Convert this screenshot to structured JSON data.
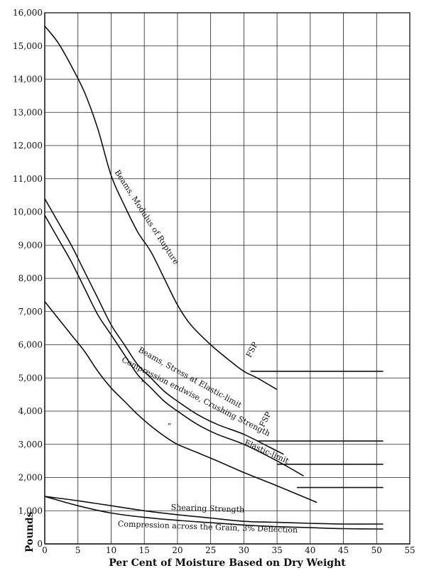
{
  "chart_data": {
    "type": "line",
    "xlabel": "Per Cent of Moisture Based on Dry Weight",
    "ylabel": "Pounds",
    "xlim": [
      0,
      55
    ],
    "ylim": [
      0,
      16000
    ],
    "grid": true,
    "x_ticks": [
      "0",
      "5",
      "10",
      "15",
      "20",
      "25",
      "30",
      "35",
      "40",
      "45",
      "50",
      "55"
    ],
    "y_ticks": [
      "0",
      "1,000",
      "2,000",
      "3,000",
      "4,000",
      "5,000",
      "6,000",
      "7,000",
      "8,000",
      "9,000",
      "10,000",
      "11,000",
      "12,000",
      "13,000",
      "14,000",
      "15,000",
      "16,000"
    ],
    "series": [
      {
        "name": "Beams, Modulus of Rupture",
        "points": [
          [
            0,
            15600
          ],
          [
            2,
            15100
          ],
          [
            4,
            14400
          ],
          [
            6,
            13600
          ],
          [
            8,
            12500
          ],
          [
            10,
            11100
          ],
          [
            12,
            10200
          ],
          [
            14,
            9400
          ],
          [
            16,
            8800
          ],
          [
            18,
            8000
          ],
          [
            20,
            7200
          ],
          [
            22,
            6600
          ],
          [
            25,
            6000
          ],
          [
            28,
            5500
          ],
          [
            30,
            5200
          ],
          [
            32,
            5000
          ],
          [
            35,
            4650
          ]
        ],
        "flat": {
          "y": 5200,
          "x": [
            31,
            51
          ]
        },
        "fsp": {
          "text": "FSP",
          "x": 31,
          "y": 5600
        }
      },
      {
        "name": "Beams, Stress at Elastic-limit",
        "points": [
          [
            0,
            10400
          ],
          [
            2,
            9700
          ],
          [
            4,
            9000
          ],
          [
            6,
            8200
          ],
          [
            8,
            7400
          ],
          [
            10,
            6600
          ],
          [
            12,
            6000
          ],
          [
            14,
            5400
          ],
          [
            16,
            5000
          ],
          [
            18,
            4600
          ],
          [
            20,
            4300
          ],
          [
            23,
            3900
          ],
          [
            26,
            3600
          ],
          [
            30,
            3300
          ],
          [
            34,
            2900
          ],
          [
            36,
            2700
          ]
        ],
        "flat": {
          "y": 3100,
          "x": [
            32,
            51
          ]
        },
        "fsp": {
          "text": "FSP",
          "x": 33,
          "y": 3500
        }
      },
      {
        "name": "Compression endwise, Crushing Strength",
        "points": [
          [
            0,
            9900
          ],
          [
            2,
            9200
          ],
          [
            4,
            8500
          ],
          [
            6,
            7700
          ],
          [
            8,
            6900
          ],
          [
            10,
            6300
          ],
          [
            12,
            5700
          ],
          [
            14,
            5100
          ],
          [
            16,
            4700
          ],
          [
            18,
            4300
          ],
          [
            20,
            4000
          ],
          [
            23,
            3600
          ],
          [
            26,
            3300
          ],
          [
            30,
            3000
          ],
          [
            35,
            2500
          ],
          [
            39,
            2050
          ]
        ],
        "flat": {
          "y": 2400,
          "x": [
            35,
            51
          ]
        }
      },
      {
        "name": "Compression endwise, Elastic-limit",
        "points": [
          [
            0,
            7300
          ],
          [
            2,
            6800
          ],
          [
            4,
            6300
          ],
          [
            6,
            5800
          ],
          [
            8,
            5200
          ],
          [
            10,
            4700
          ],
          [
            12,
            4300
          ],
          [
            14,
            3900
          ],
          [
            16,
            3550
          ],
          [
            18,
            3250
          ],
          [
            20,
            3000
          ],
          [
            23,
            2750
          ],
          [
            26,
            2500
          ],
          [
            30,
            2150
          ],
          [
            35,
            1750
          ],
          [
            41,
            1250
          ]
        ],
        "flat": {
          "y": 1700,
          "x": [
            38,
            51
          ]
        }
      },
      {
        "name": "Shearing Strength",
        "points": [
          [
            0,
            1430
          ],
          [
            5,
            1300
          ],
          [
            10,
            1150
          ],
          [
            15,
            1000
          ],
          [
            20,
            880
          ],
          [
            25,
            780
          ],
          [
            30,
            680
          ],
          [
            35,
            650
          ],
          [
            40,
            620
          ],
          [
            45,
            600
          ],
          [
            51,
            600
          ]
        ]
      },
      {
        "name": "Compression across the Grain, 3% Deflection",
        "points": [
          [
            0,
            1430
          ],
          [
            5,
            1150
          ],
          [
            10,
            930
          ],
          [
            15,
            800
          ],
          [
            20,
            710
          ],
          [
            25,
            640
          ],
          [
            30,
            570
          ],
          [
            35,
            520
          ],
          [
            40,
            490
          ],
          [
            45,
            460
          ],
          [
            51,
            450
          ]
        ]
      }
    ],
    "annotations": [
      {
        "text": "Beams, Modulus of Rupture",
        "x": 10.5,
        "y": 11200,
        "angle": 57
      },
      {
        "text": "Beams, Stress at Elastic-limit",
        "x": 14,
        "y": 5800,
        "angle": 29
      },
      {
        "text": "Compression endwise, Crushing Strength",
        "x": 11.5,
        "y": 5500,
        "angle": 27
      },
      {
        "text": "„",
        "x": 14.5,
        "y": 4900,
        "angle": 0
      },
      {
        "text": "„",
        "x": 18.5,
        "y": 3600,
        "angle": 0
      },
      {
        "text": "Elastic-limit",
        "x": 30,
        "y": 3000,
        "angle": 24
      },
      {
        "text": "Shearing Strength",
        "x": 19,
        "y": 1030,
        "angle": 2
      },
      {
        "text": "Compression across the Grain, 3% Deflection",
        "x": 11,
        "y": 530,
        "angle": 2
      }
    ]
  }
}
